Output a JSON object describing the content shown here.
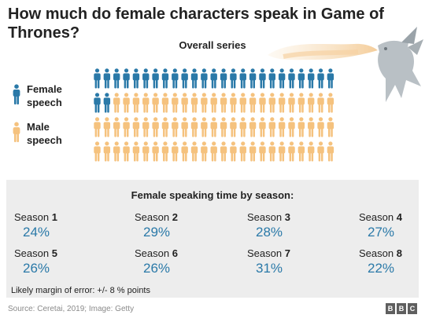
{
  "header": {
    "title": "How much do female characters speak in Game of Thrones?",
    "subtitle": "Overall series"
  },
  "colors": {
    "female": "#2a79a8",
    "male": "#f5c27e",
    "panel": "#ededed",
    "value_text": "#2a79a8"
  },
  "legend": {
    "female": "Female speech",
    "male": "Male speech"
  },
  "chart_data": {
    "type": "pictogram",
    "title": "Overall series",
    "total_icons": 100,
    "series": [
      {
        "name": "Female speech",
        "count": 27
      },
      {
        "name": "Male speech",
        "count": 73
      }
    ],
    "layout": {
      "rows": 4,
      "columns": 25
    }
  },
  "seasons": {
    "title": "Female speaking time by season:",
    "word": "Season",
    "items": [
      {
        "number": "1",
        "value": "24%"
      },
      {
        "number": "2",
        "value": "29%"
      },
      {
        "number": "3",
        "value": "28%"
      },
      {
        "number": "4",
        "value": "27%"
      },
      {
        "number": "5",
        "value": "26%"
      },
      {
        "number": "6",
        "value": "26%"
      },
      {
        "number": "7",
        "value": "31%"
      },
      {
        "number": "8",
        "value": "22%"
      }
    ],
    "note": "Likely margin of error: +/- 8 % points"
  },
  "footer": {
    "source": "Source: Ceretai, 2019; Image: Getty",
    "logo": [
      "B",
      "B",
      "C"
    ]
  },
  "icons": {
    "person": "person-icon",
    "dragon": "dragon-illustration",
    "logo": "bbc-logo"
  }
}
